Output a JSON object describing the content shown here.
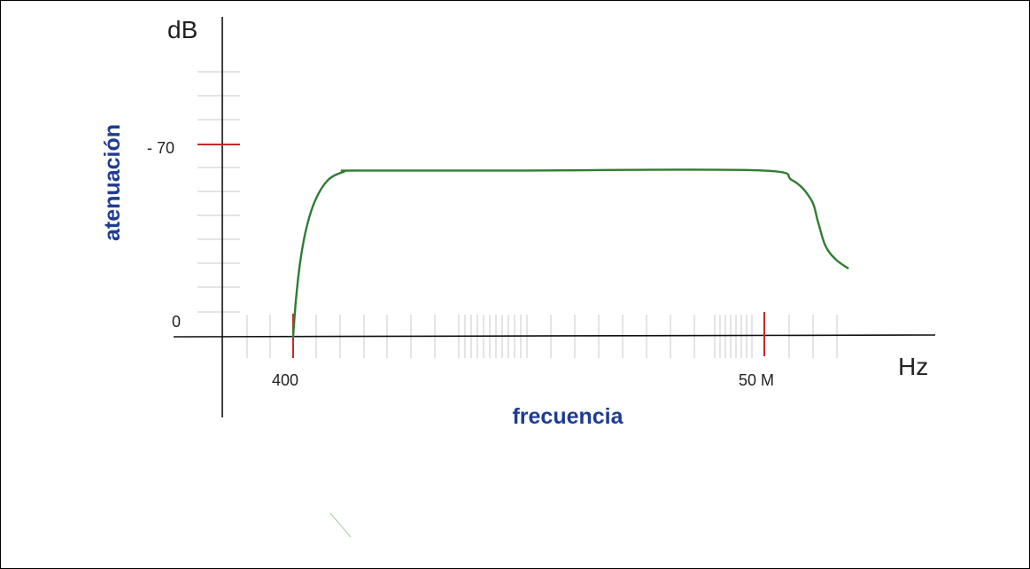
{
  "chart_data": {
    "type": "line",
    "y_unit": "dB",
    "x_unit": "Hz",
    "xlabel": "frecuencia",
    "ylabel": "atenuación",
    "x_scale": "log",
    "y_ticks": [
      "- 70",
      "0"
    ],
    "x_ticks": [
      "400",
      "50 M"
    ],
    "series": [
      {
        "values": [
          {
            "x": 400,
            "y": 0
          },
          {
            "x": 430,
            "y": -14
          },
          {
            "x": 480,
            "y": -28
          },
          {
            "x": 560,
            "y": -40
          },
          {
            "x": 700,
            "y": -50
          },
          {
            "x": 950,
            "y": -57
          },
          {
            "x": 1400,
            "y": -60
          },
          {
            "x": 2000,
            "y": -60.5
          },
          {
            "x": 100000,
            "y": -60.5
          },
          {
            "x": 40000000,
            "y": -60.6
          },
          {
            "x": 100000000,
            "y": -57
          },
          {
            "x": 160000000,
            "y": -50
          },
          {
            "x": 190000000,
            "y": -42
          },
          {
            "x": 230000000,
            "y": -33
          },
          {
            "x": 300000000,
            "y": -28
          },
          {
            "x": 400000000,
            "y": -25
          }
        ]
      }
    ],
    "colors": {
      "curve": "#2e7d32",
      "axis": "#111111",
      "marker": "#c62828",
      "axis_title": "#1f3b93",
      "minor_tick": "#9e9e9e"
    }
  }
}
